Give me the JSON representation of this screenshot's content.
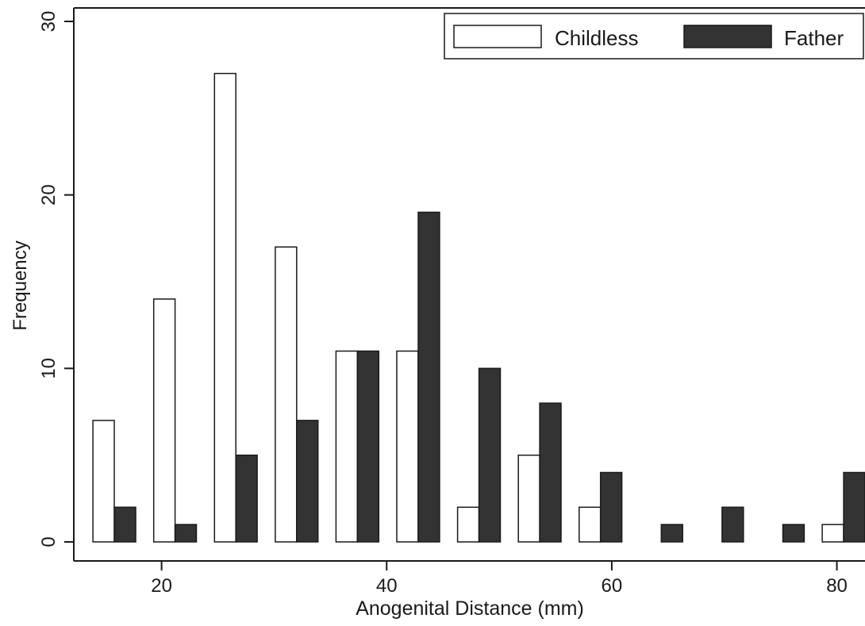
{
  "chart_data": {
    "type": "bar",
    "title": "",
    "xlabel": "Anogenital Distance (mm)",
    "ylabel": "Frequency",
    "xlim": [
      12.2,
      82.5
    ],
    "ylim": [
      0,
      30
    ],
    "x_ticks": [
      "20",
      "40",
      "60",
      "80"
    ],
    "y_ticks": [
      "0",
      "10",
      "20",
      "30"
    ],
    "x_tick_values": [
      20,
      40,
      60,
      80
    ],
    "y_tick_values": [
      0,
      10,
      20,
      30
    ],
    "bar_width": 1.9,
    "categories": [
      15.8,
      21.2,
      26.6,
      32.0,
      37.4,
      42.8,
      48.2,
      53.6,
      59.0,
      64.4,
      69.8,
      75.2,
      80.6
    ],
    "series": [
      {
        "name": "Childless",
        "values": [
          7,
          14,
          27,
          17,
          11,
          11,
          2,
          5,
          2,
          0,
          0,
          0,
          1
        ],
        "color": "#ffffff"
      },
      {
        "name": "Father",
        "values": [
          2,
          1,
          5,
          7,
          11,
          19,
          10,
          8,
          4,
          1,
          2,
          1,
          4
        ],
        "color": "#333333"
      }
    ],
    "grid": false,
    "legend_position": "top-right",
    "colors": {
      "outline": "#1a1a1a",
      "childless_fill": "#ffffff",
      "father_fill": "#333333"
    }
  }
}
